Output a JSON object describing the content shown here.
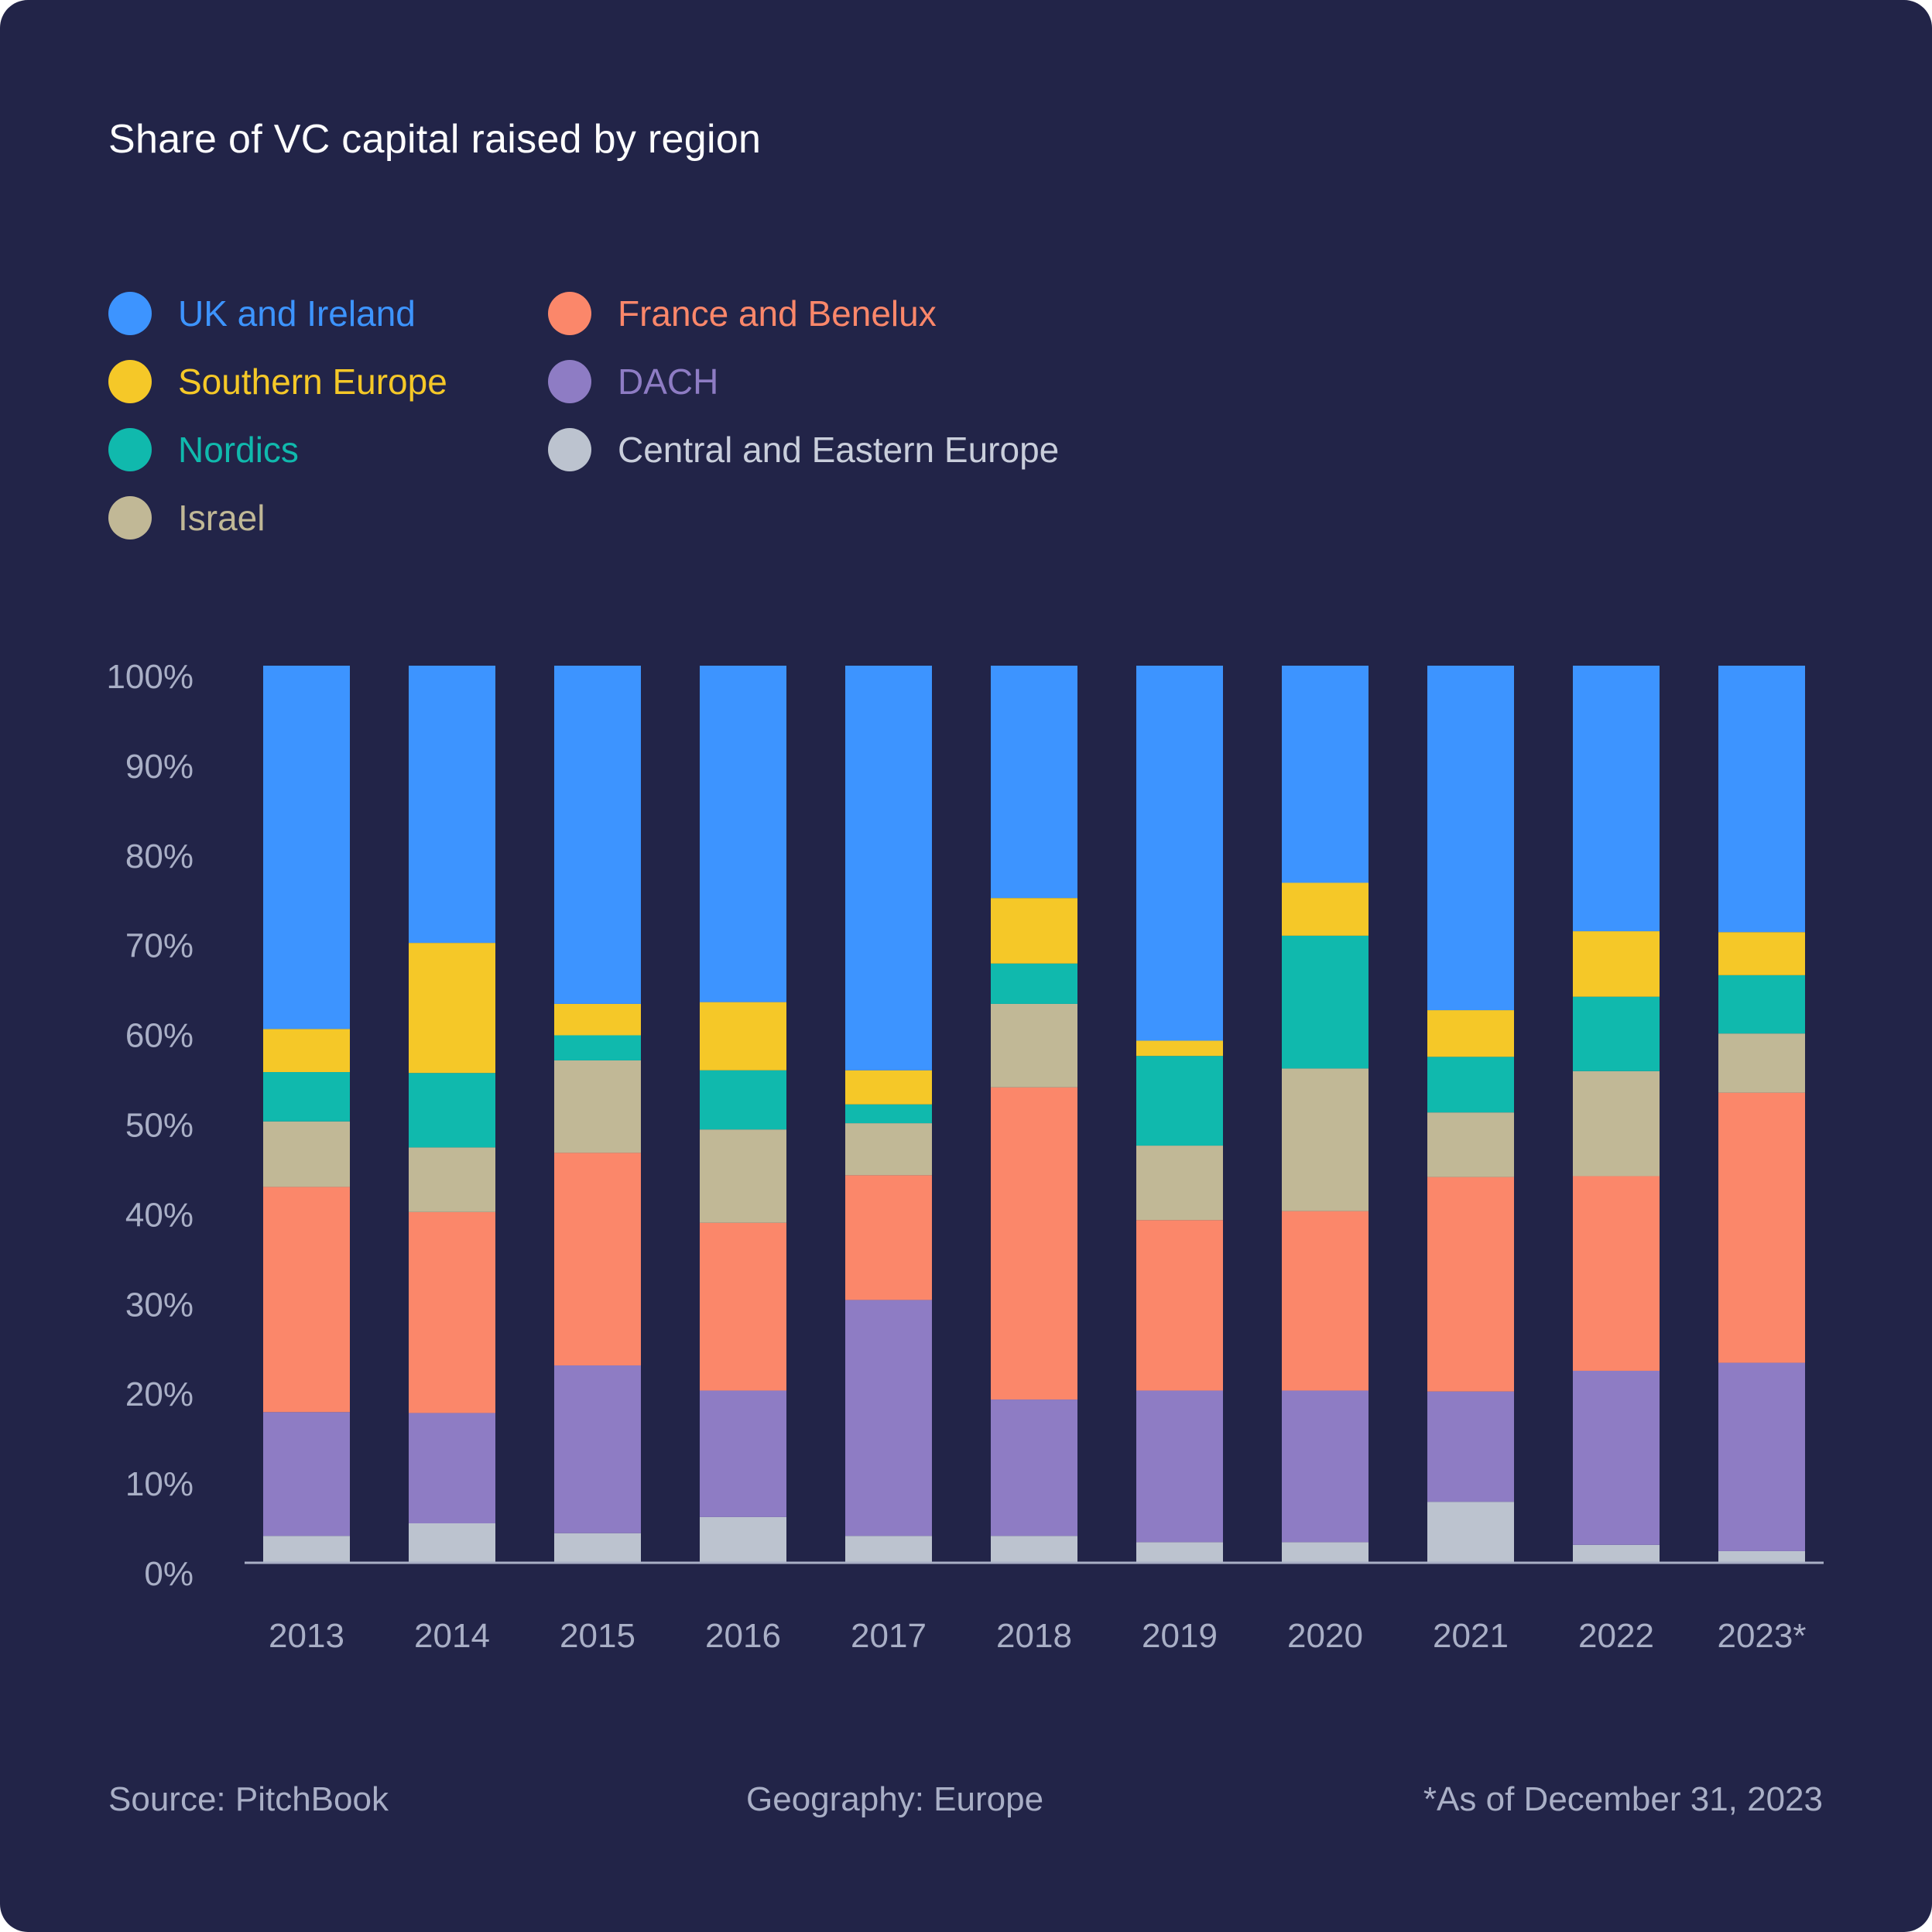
{
  "colors": {
    "background": "#222448",
    "title": "#ffffff",
    "muted_text": "#a9afc6",
    "axis_line": "#a9afc6"
  },
  "header": {
    "title": "Share of VC capital raised by region"
  },
  "legend": {
    "items": [
      {
        "label": "UK and Ireland",
        "color": "#3d94ff"
      },
      {
        "label": "Southern Europe",
        "color": "#f5c828"
      },
      {
        "label": "Nordics",
        "color": "#10b9ad"
      },
      {
        "label": "Israel",
        "color": "#c1b896"
      },
      {
        "label": "France and Benelux",
        "color": "#fb876a"
      },
      {
        "label": "DACH",
        "color": "#8e7cc4"
      },
      {
        "label": "Central and Eastern Europe",
        "color": "#bcc3cf"
      }
    ]
  },
  "chart_data": {
    "type": "bar",
    "stacked": true,
    "title": "Share of VC capital raised by region",
    "categories": [
      "2013",
      "2014",
      "2015",
      "2016",
      "2017",
      "2018",
      "2019",
      "2020",
      "2021",
      "2022",
      "2023*"
    ],
    "y_ticks": [
      "0%",
      "10%",
      "20%",
      "30%",
      "40%",
      "50%",
      "60%",
      "70%",
      "80%",
      "90%",
      "100%"
    ],
    "ylim": [
      0,
      100
    ],
    "grid": false,
    "legend_position": "top-left",
    "series": [
      {
        "name": "Central and Eastern Europe",
        "color": "#bcc3cf",
        "values": [
          3.0,
          4.4,
          3.3,
          5.1,
          3.0,
          3.0,
          2.3,
          2.3,
          6.8,
          2.0,
          1.3
        ]
      },
      {
        "name": "DACH",
        "color": "#8e7cc4",
        "values": [
          13.8,
          12.3,
          18.7,
          14.1,
          26.3,
          15.2,
          16.9,
          16.9,
          12.3,
          19.4,
          21.0
        ]
      },
      {
        "name": "France and Benelux",
        "color": "#fb876a",
        "values": [
          25.1,
          22.4,
          23.7,
          18.7,
          13.9,
          34.8,
          19.0,
          20.0,
          23.9,
          21.7,
          30.1
        ]
      },
      {
        "name": "Israel",
        "color": "#c1b896",
        "values": [
          7.3,
          7.2,
          10.3,
          10.4,
          5.8,
          9.3,
          8.3,
          15.9,
          7.2,
          11.7,
          6.6
        ]
      },
      {
        "name": "Nordics",
        "color": "#10b9ad",
        "values": [
          5.5,
          8.3,
          2.8,
          6.6,
          2.1,
          4.5,
          10.0,
          14.8,
          6.2,
          8.3,
          6.5
        ]
      },
      {
        "name": "Southern Europe",
        "color": "#f5c828",
        "values": [
          4.8,
          14.5,
          3.5,
          7.6,
          3.8,
          7.3,
          1.7,
          5.9,
          5.2,
          7.3,
          4.8
        ]
      },
      {
        "name": "UK and Ireland",
        "color": "#3d94ff",
        "values": [
          40.5,
          30.9,
          37.7,
          37.5,
          45.1,
          25.9,
          41.8,
          24.2,
          38.4,
          29.6,
          29.7
        ]
      }
    ]
  },
  "footer": {
    "source": "Source: PitchBook",
    "geography": "Geography: Europe",
    "note": "*As of December 31, 2023"
  }
}
